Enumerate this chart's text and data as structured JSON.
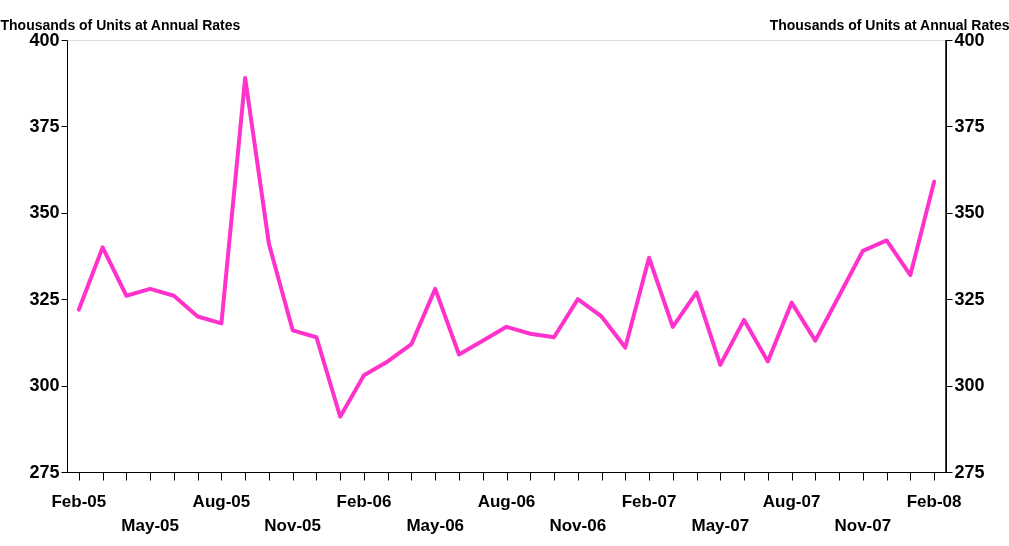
{
  "chart_data": {
    "type": "line",
    "ylabel": "Thousands of Units at Annual Rates",
    "y2label": "Thousands of Units at Annual Rates",
    "categories": [
      "Feb-05",
      null,
      null,
      "May-05",
      null,
      null,
      "Aug-05",
      null,
      null,
      "Nov-05",
      null,
      null,
      "Feb-06",
      null,
      null,
      "May-06",
      null,
      null,
      "Aug-06",
      null,
      null,
      "Nov-06",
      null,
      null,
      "Feb-07",
      null,
      null,
      "May-07",
      null,
      null,
      "Aug-07",
      null,
      null,
      "Nov-07",
      null,
      null,
      "Feb-08"
    ],
    "series": [
      {
        "color": "#ff33cc",
        "values": [
          322,
          340,
          326,
          328,
          326,
          320,
          318,
          389,
          341,
          316,
          314,
          291,
          303,
          307,
          312,
          328,
          309,
          313,
          317,
          315,
          314,
          325,
          320,
          311,
          337,
          317,
          327,
          306,
          319,
          307,
          324,
          313,
          326,
          339,
          342,
          332,
          359
        ]
      }
    ],
    "ylim": [
      275,
      400
    ],
    "yticks": [
      275,
      300,
      325,
      350,
      375,
      400
    ],
    "y2lim": [
      275,
      400
    ],
    "y2ticks": [
      275,
      300,
      325,
      350,
      375,
      400
    ],
    "grid": false,
    "marker": "none",
    "line_style": "solid"
  }
}
